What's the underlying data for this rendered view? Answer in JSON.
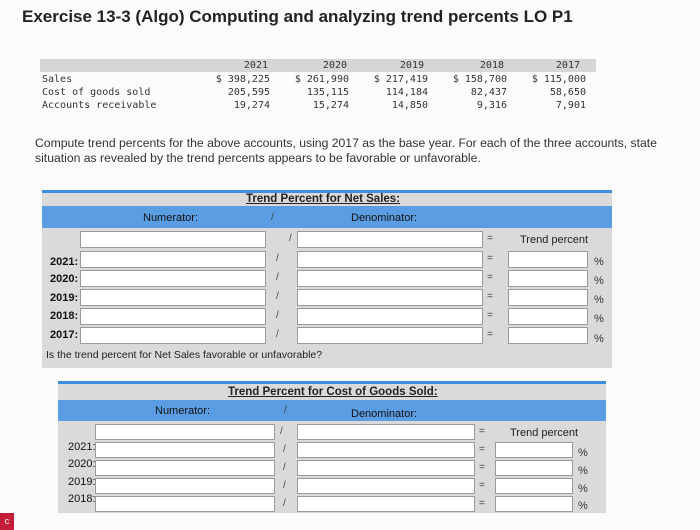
{
  "title": "Exercise 13-3 (Algo) Computing and analyzing trend percents LO P1",
  "data_table": {
    "years": [
      "2021",
      "2020",
      "2019",
      "2018",
      "2017"
    ],
    "rows": [
      {
        "label": "Sales",
        "values": [
          "$ 398,225",
          "$ 261,990",
          "$ 217,419",
          "$ 158,700",
          "$ 115,000"
        ]
      },
      {
        "label": "Cost of goods sold",
        "values": [
          "205,595",
          "135,115",
          "114,184",
          "82,437",
          "58,650"
        ]
      },
      {
        "label": "Accounts receivable",
        "values": [
          "19,274",
          "15,274",
          "14,850",
          "9,316",
          "7,901"
        ]
      }
    ]
  },
  "instructions": [
    "Compute trend percents for the above accounts, using 2017 as the base year. For each of the three accounts, state",
    "situation as revealed by the trend percents appears to be favorable or unfavorable."
  ],
  "section1": {
    "title": "Trend Percent for Net Sales:",
    "numerator_label": "Numerator:",
    "slash": "/",
    "denominator_label": "Denominator:",
    "equals": "=",
    "result_label": "Trend percent",
    "percent": "%",
    "rows": [
      "2021:",
      "2020:",
      "2019:",
      "2018:",
      "2017:"
    ],
    "question": "Is the trend percent for Net Sales favorable or unfavorable?"
  },
  "section2": {
    "title": "Trend Percent for Cost of Goods Sold:",
    "numerator_label": "Numerator:",
    "slash": "/",
    "denominator_label": "Denominator:",
    "equals": "=",
    "result_label": "Trend percent",
    "percent": "%",
    "rows": [
      "2021:",
      "2020:",
      "2019:",
      "2018:"
    ]
  },
  "corner_badge": "c"
}
